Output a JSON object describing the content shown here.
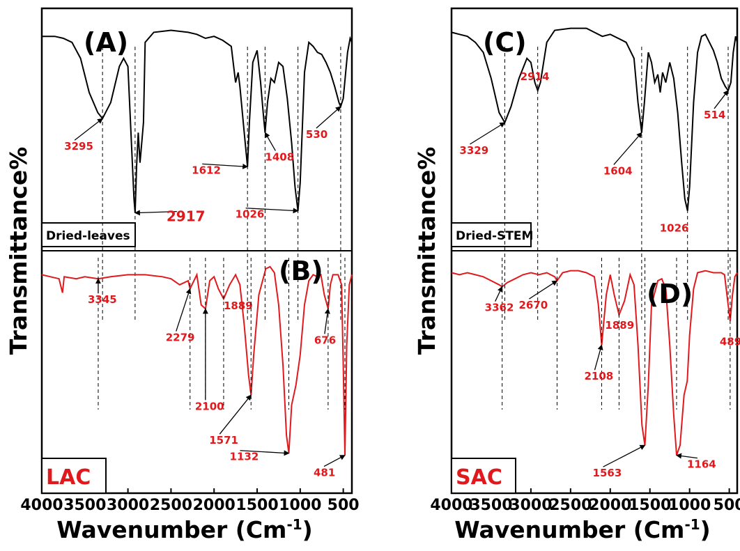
{
  "chart_data": [
    {
      "type": "line",
      "panel": "left",
      "xlabel": "Wavenumber (Cm",
      "xlabel_sup": "-1",
      "xlabel_close": ")",
      "ylabel": "Transmittance%",
      "xlim": [
        4000,
        400
      ],
      "xticks": [
        "4000",
        "3500",
        "3000",
        "2500",
        "2000",
        "1500",
        "1000",
        "500"
      ],
      "series": [
        {
          "name": "Dried-leaves",
          "panel_label": "(A)",
          "color": "#000000",
          "points": [
            [
              4000,
              0.93
            ],
            [
              3850,
              0.93
            ],
            [
              3750,
              0.92
            ],
            [
              3650,
              0.9
            ],
            [
              3550,
              0.82
            ],
            [
              3450,
              0.65
            ],
            [
              3350,
              0.55
            ],
            [
              3295,
              0.52
            ],
            [
              3200,
              0.6
            ],
            [
              3100,
              0.78
            ],
            [
              3050,
              0.82
            ],
            [
              3000,
              0.78
            ],
            [
              2960,
              0.4
            ],
            [
              2930,
              0.12
            ],
            [
              2917,
              0.05
            ],
            [
              2900,
              0.28
            ],
            [
              2880,
              0.45
            ],
            [
              2860,
              0.3
            ],
            [
              2850,
              0.35
            ],
            [
              2820,
              0.5
            ],
            [
              2800,
              0.9
            ],
            [
              2700,
              0.95
            ],
            [
              2500,
              0.96
            ],
            [
              2300,
              0.95
            ],
            [
              2200,
              0.94
            ],
            [
              2100,
              0.92
            ],
            [
              2000,
              0.93
            ],
            [
              1900,
              0.91
            ],
            [
              1800,
              0.88
            ],
            [
              1750,
              0.7
            ],
            [
              1720,
              0.75
            ],
            [
              1700,
              0.68
            ],
            [
              1650,
              0.45
            ],
            [
              1612,
              0.28
            ],
            [
              1590,
              0.5
            ],
            [
              1550,
              0.8
            ],
            [
              1500,
              0.86
            ],
            [
              1460,
              0.7
            ],
            [
              1430,
              0.55
            ],
            [
              1408,
              0.45
            ],
            [
              1380,
              0.6
            ],
            [
              1340,
              0.72
            ],
            [
              1300,
              0.7
            ],
            [
              1250,
              0.8
            ],
            [
              1200,
              0.78
            ],
            [
              1150,
              0.62
            ],
            [
              1100,
              0.4
            ],
            [
              1060,
              0.18
            ],
            [
              1026,
              0.06
            ],
            [
              1000,
              0.2
            ],
            [
              950,
              0.75
            ],
            [
              900,
              0.9
            ],
            [
              850,
              0.88
            ],
            [
              800,
              0.85
            ],
            [
              750,
              0.84
            ],
            [
              700,
              0.8
            ],
            [
              650,
              0.75
            ],
            [
              600,
              0.68
            ],
            [
              550,
              0.6
            ],
            [
              530,
              0.58
            ],
            [
              500,
              0.62
            ],
            [
              450,
              0.85
            ],
            [
              420,
              0.92
            ],
            [
              400,
              0.9
            ]
          ],
          "annotations": [
            "3295",
            "2917",
            "1612",
            "1408",
            "1026",
            "530"
          ]
        },
        {
          "name": "LAC",
          "panel_label": "(B)",
          "color": "#e0191d",
          "points": [
            [
              4000,
              0.95
            ],
            [
              3900,
              0.94
            ],
            [
              3800,
              0.93
            ],
            [
              3760,
              0.86
            ],
            [
              3740,
              0.94
            ],
            [
              3600,
              0.93
            ],
            [
              3500,
              0.94
            ],
            [
              3345,
              0.93
            ],
            [
              3200,
              0.94
            ],
            [
              3000,
              0.95
            ],
            [
              2800,
              0.95
            ],
            [
              2600,
              0.94
            ],
            [
              2500,
              0.93
            ],
            [
              2400,
              0.9
            ],
            [
              2300,
              0.92
            ],
            [
              2279,
              0.88
            ],
            [
              2200,
              0.95
            ],
            [
              2150,
              0.8
            ],
            [
              2100,
              0.78
            ],
            [
              2050,
              0.92
            ],
            [
              2000,
              0.94
            ],
            [
              1950,
              0.88
            ],
            [
              1889,
              0.83
            ],
            [
              1820,
              0.9
            ],
            [
              1750,
              0.95
            ],
            [
              1700,
              0.9
            ],
            [
              1650,
              0.7
            ],
            [
              1600,
              0.45
            ],
            [
              1571,
              0.35
            ],
            [
              1540,
              0.55
            ],
            [
              1480,
              0.85
            ],
            [
              1400,
              0.98
            ],
            [
              1350,
              0.99
            ],
            [
              1300,
              0.96
            ],
            [
              1250,
              0.8
            ],
            [
              1200,
              0.5
            ],
            [
              1160,
              0.15
            ],
            [
              1132,
              0.06
            ],
            [
              1100,
              0.3
            ],
            [
              1050,
              0.4
            ],
            [
              1000,
              0.55
            ],
            [
              950,
              0.8
            ],
            [
              900,
              0.92
            ],
            [
              850,
              0.95
            ],
            [
              800,
              0.94
            ],
            [
              760,
              0.95
            ],
            [
              720,
              0.85
            ],
            [
              676,
              0.78
            ],
            [
              650,
              0.9
            ],
            [
              620,
              0.95
            ],
            [
              560,
              0.95
            ],
            [
              520,
              0.9
            ],
            [
              500,
              0.5
            ],
            [
              481,
              0.05
            ],
            [
              460,
              0.6
            ],
            [
              430,
              0.9
            ],
            [
              400,
              0.95
            ]
          ],
          "annotations": [
            "3345",
            "2279",
            "2100",
            "1889",
            "1571",
            "1132",
            "676",
            "481"
          ]
        }
      ],
      "box_labels": [
        "Dried-leaves",
        "LAC"
      ]
    },
    {
      "type": "line",
      "panel": "right",
      "xlabel": "Wavenumber (Cm",
      "xlabel_sup": "-1",
      "xlabel_close": ")",
      "ylabel": "Transmittance%",
      "xlim": [
        4000,
        400
      ],
      "xticks": [
        "4000",
        "3500",
        "3000",
        "2500",
        "2000",
        "1500",
        "1000",
        "500"
      ],
      "series": [
        {
          "name": "Dried-STEM",
          "panel_label": "(C)",
          "color": "#000000",
          "points": [
            [
              4000,
              0.95
            ],
            [
              3900,
              0.94
            ],
            [
              3800,
              0.93
            ],
            [
              3700,
              0.9
            ],
            [
              3600,
              0.85
            ],
            [
              3500,
              0.72
            ],
            [
              3400,
              0.55
            ],
            [
              3329,
              0.5
            ],
            [
              3250,
              0.58
            ],
            [
              3150,
              0.72
            ],
            [
              3050,
              0.82
            ],
            [
              3000,
              0.8
            ],
            [
              2950,
              0.7
            ],
            [
              2914,
              0.66
            ],
            [
              2880,
              0.7
            ],
            [
              2800,
              0.9
            ],
            [
              2700,
              0.96
            ],
            [
              2500,
              0.97
            ],
            [
              2300,
              0.97
            ],
            [
              2200,
              0.95
            ],
            [
              2100,
              0.93
            ],
            [
              2000,
              0.94
            ],
            [
              1900,
              0.92
            ],
            [
              1800,
              0.9
            ],
            [
              1700,
              0.82
            ],
            [
              1650,
              0.6
            ],
            [
              1604,
              0.45
            ],
            [
              1570,
              0.6
            ],
            [
              1520,
              0.85
            ],
            [
              1480,
              0.8
            ],
            [
              1440,
              0.7
            ],
            [
              1400,
              0.74
            ],
            [
              1370,
              0.65
            ],
            [
              1340,
              0.75
            ],
            [
              1300,
              0.7
            ],
            [
              1250,
              0.8
            ],
            [
              1200,
              0.72
            ],
            [
              1150,
              0.55
            ],
            [
              1100,
              0.3
            ],
            [
              1060,
              0.12
            ],
            [
              1026,
              0.06
            ],
            [
              1000,
              0.18
            ],
            [
              950,
              0.6
            ],
            [
              900,
              0.85
            ],
            [
              850,
              0.93
            ],
            [
              800,
              0.94
            ],
            [
              750,
              0.9
            ],
            [
              700,
              0.86
            ],
            [
              650,
              0.8
            ],
            [
              600,
              0.72
            ],
            [
              550,
              0.68
            ],
            [
              514,
              0.66
            ],
            [
              480,
              0.7
            ],
            [
              450,
              0.85
            ],
            [
              420,
              0.93
            ],
            [
              400,
              0.9
            ]
          ],
          "annotations": [
            "3329",
            "2914",
            "1604",
            "1026",
            "514"
          ]
        },
        {
          "name": "SAC",
          "panel_label": "(D)",
          "color": "#e0191d",
          "points": [
            [
              4000,
              0.96
            ],
            [
              3900,
              0.95
            ],
            [
              3800,
              0.96
            ],
            [
              3700,
              0.95
            ],
            [
              3600,
              0.94
            ],
            [
              3500,
              0.92
            ],
            [
              3400,
              0.9
            ],
            [
              3362,
              0.89
            ],
            [
              3300,
              0.91
            ],
            [
              3200,
              0.93
            ],
            [
              3100,
              0.95
            ],
            [
              3000,
              0.96
            ],
            [
              2900,
              0.95
            ],
            [
              2800,
              0.96
            ],
            [
              2700,
              0.94
            ],
            [
              2670,
              0.92
            ],
            [
              2600,
              0.96
            ],
            [
              2500,
              0.97
            ],
            [
              2400,
              0.97
            ],
            [
              2300,
              0.96
            ],
            [
              2200,
              0.94
            ],
            [
              2150,
              0.8
            ],
            [
              2108,
              0.6
            ],
            [
              2050,
              0.85
            ],
            [
              2000,
              0.95
            ],
            [
              1950,
              0.85
            ],
            [
              1889,
              0.75
            ],
            [
              1820,
              0.82
            ],
            [
              1750,
              0.95
            ],
            [
              1700,
              0.9
            ],
            [
              1650,
              0.6
            ],
            [
              1600,
              0.2
            ],
            [
              1563,
              0.1
            ],
            [
              1520,
              0.4
            ],
            [
              1480,
              0.8
            ],
            [
              1400,
              0.92
            ],
            [
              1350,
              0.93
            ],
            [
              1300,
              0.88
            ],
            [
              1250,
              0.6
            ],
            [
              1200,
              0.25
            ],
            [
              1164,
              0.05
            ],
            [
              1120,
              0.1
            ],
            [
              1070,
              0.35
            ],
            [
              1030,
              0.42
            ],
            [
              1000,
              0.65
            ],
            [
              950,
              0.88
            ],
            [
              900,
              0.96
            ],
            [
              800,
              0.97
            ],
            [
              700,
              0.96
            ],
            [
              600,
              0.96
            ],
            [
              560,
              0.95
            ],
            [
              520,
              0.82
            ],
            [
              489,
              0.72
            ],
            [
              460,
              0.85
            ],
            [
              430,
              0.94
            ],
            [
              400,
              0.96
            ]
          ],
          "annotations": [
            "3362",
            "2670",
            "2108",
            "1889",
            "1563",
            "1164",
            "489"
          ]
        }
      ],
      "box_labels": [
        "Dried-STEM",
        "SAC"
      ]
    }
  ]
}
